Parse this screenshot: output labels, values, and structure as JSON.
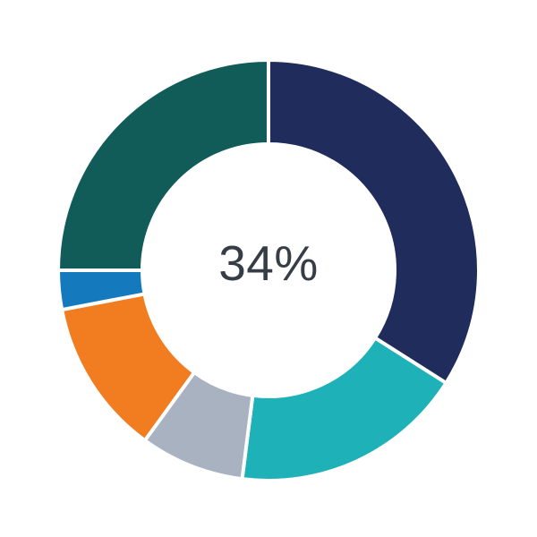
{
  "chart_data": {
    "type": "pie",
    "variant": "donut",
    "center_label": "34%",
    "center_label_color": "#363D47",
    "start_angle_deg": 0,
    "direction": "clockwise",
    "inner_radius_ratio": 0.6,
    "separator_color": "#ffffff",
    "background_color": "#ffffff",
    "legend": "none",
    "segments": [
      {
        "label": "navy",
        "value": 34,
        "color": "#202D5C"
      },
      {
        "label": "teal",
        "value": 18,
        "color": "#1EB1B7"
      },
      {
        "label": "gray",
        "value": 8,
        "color": "#A8B2C0"
      },
      {
        "label": "orange",
        "value": 12,
        "color": "#F27C20"
      },
      {
        "label": "blue",
        "value": 3,
        "color": "#1579BE"
      },
      {
        "label": "dark-green",
        "value": 25,
        "color": "#115C59"
      }
    ]
  }
}
